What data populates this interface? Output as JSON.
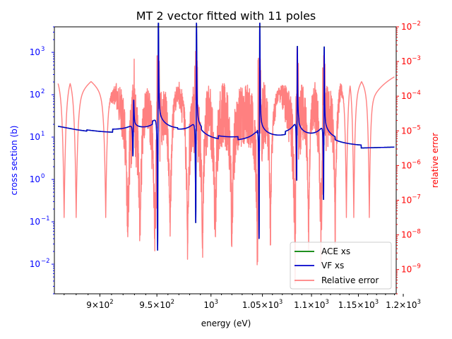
{
  "chart_data": {
    "type": "line",
    "title": "MT 2 vector fitted with 11 poles",
    "xlabel": "energy (eV)",
    "ylabel_left": "cross section (b)",
    "ylabel_right": "relative error",
    "xscale": "log",
    "xlim": [
      862,
      1192
    ],
    "ylim_left": [
      0.002,
      4000
    ],
    "ylim_right": [
      2e-10,
      0.01
    ],
    "x_ticks": [
      {
        "value": 900,
        "mant": "9",
        "exp": "2"
      },
      {
        "value": 950,
        "mant": "9.5",
        "exp": "2"
      },
      {
        "value": 1000,
        "mant": "10",
        "exp": "3",
        "plain": true
      },
      {
        "value": 1050,
        "mant": "1.05",
        "exp": "3"
      },
      {
        "value": 1100,
        "mant": "1.1",
        "exp": "3"
      },
      {
        "value": 1150,
        "mant": "1.15",
        "exp": "3"
      },
      {
        "value": 1200,
        "mant": "1.2",
        "exp": "3"
      }
    ],
    "y_ticks_left": [
      {
        "value": 0.01,
        "exp": "−2"
      },
      {
        "value": 0.1,
        "exp": "−1"
      },
      {
        "value": 1,
        "exp": "0"
      },
      {
        "value": 10,
        "exp": "1"
      },
      {
        "value": 100,
        "exp": "2"
      },
      {
        "value": 1000,
        "exp": "3"
      }
    ],
    "y_ticks_right": [
      {
        "value": 1e-09,
        "exp": "−9"
      },
      {
        "value": 1e-08,
        "exp": "−8"
      },
      {
        "value": 1e-07,
        "exp": "−7"
      },
      {
        "value": 1e-06,
        "exp": "−6"
      },
      {
        "value": 1e-05,
        "exp": "−5"
      },
      {
        "value": 0.0001,
        "exp": "−4"
      },
      {
        "value": 0.001,
        "exp": "−3"
      },
      {
        "value": 0.01,
        "exp": "−2"
      }
    ],
    "series": [
      {
        "name": "ACE xs",
        "color": "#008000"
      },
      {
        "name": "VF xs",
        "color": "#0000cc"
      },
      {
        "name": "Relative error",
        "color": "#ff8080"
      }
    ],
    "background_xs": [
      [
        865,
        18
      ],
      [
        880,
        15
      ],
      [
        900,
        12.5
      ],
      [
        930,
        10
      ],
      [
        960,
        8.5
      ],
      [
        1000,
        7
      ],
      [
        1050,
        6.2
      ],
      [
        1100,
        5.8
      ],
      [
        1150,
        5.5
      ],
      [
        1190,
        5.8
      ]
    ],
    "resonances": [
      {
        "energy": 929,
        "peak": 38,
        "dip": 1.6
      },
      {
        "energy": 951,
        "peak": 2100,
        "dip": 0.004
      },
      {
        "energy": 986,
        "peak": 1600,
        "dip": 0.02
      },
      {
        "energy": 1047,
        "peak": 1800,
        "dip": 0.0085
      },
      {
        "energy": 1085,
        "peak": 320,
        "dip": 0.17
      },
      {
        "energy": 1113,
        "peak": 380,
        "dip": 0.07
      }
    ],
    "legend_position": "lower right",
    "accent_color_left": "#0000ff",
    "accent_color_right": "#ff0000"
  }
}
